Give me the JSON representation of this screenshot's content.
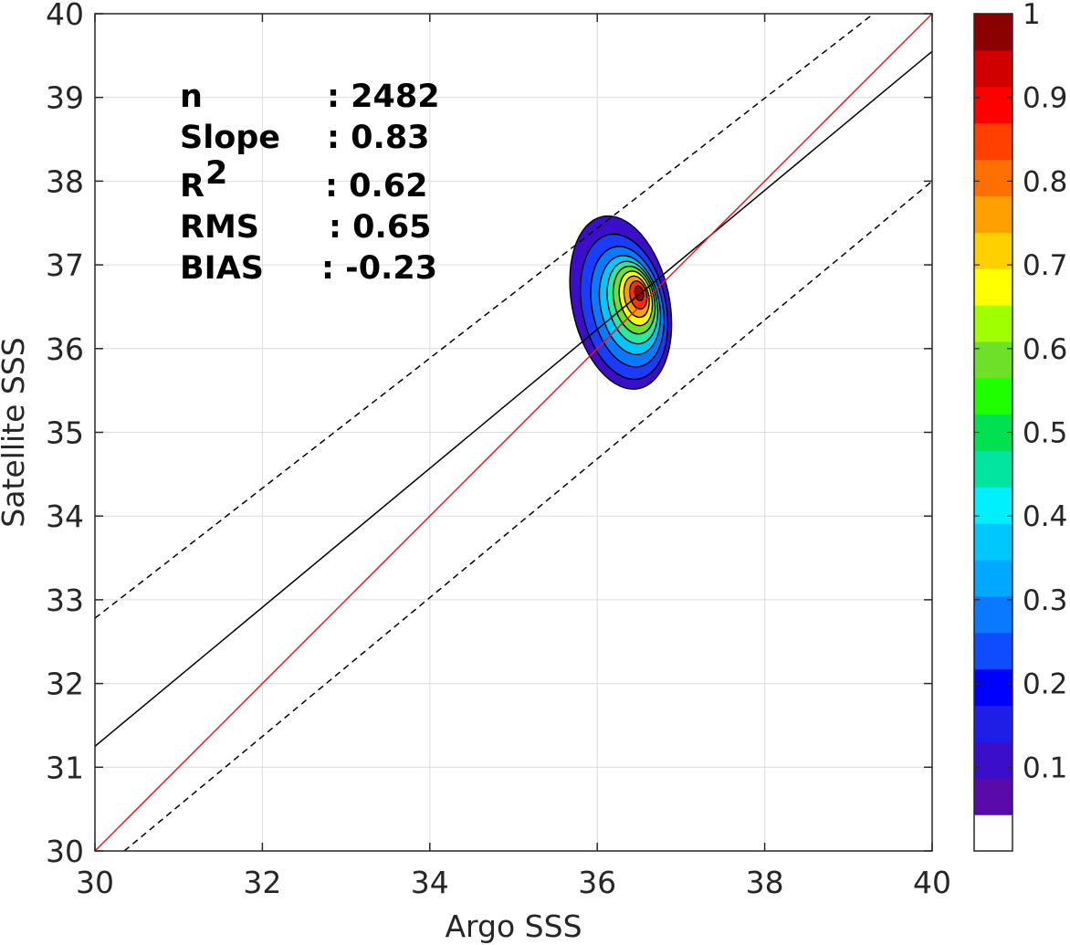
{
  "chart_data": {
    "type": "contour-density-scatter",
    "xlabel": "Argo SSS",
    "ylabel": "Satellite SSS",
    "xlim": [
      30,
      40
    ],
    "ylim": [
      30,
      40
    ],
    "x_ticks": [
      "30",
      "32",
      "34",
      "36",
      "38",
      "40"
    ],
    "y_ticks": [
      "30",
      "31",
      "32",
      "33",
      "34",
      "35",
      "36",
      "37",
      "38",
      "39",
      "40"
    ],
    "grid": true,
    "stats": [
      {
        "label": "n",
        "sep": ": 2482"
      },
      {
        "label": "Slope",
        "sep": ": 0.83"
      },
      {
        "label": "R",
        "sup": "2",
        "sep": ": 0.62"
      },
      {
        "label": "RMS",
        "sep": ": 0.65"
      },
      {
        "label": "BIAS",
        "sep": ": -0.23"
      }
    ],
    "lines": {
      "one_to_one": {
        "color": "#e41a1c",
        "x": [
          30,
          40
        ],
        "y": [
          30,
          40
        ]
      },
      "regression": {
        "color": "#000000",
        "x": [
          30,
          40
        ],
        "y": [
          31.25,
          39.55
        ]
      },
      "upper_bound": {
        "color": "#000000",
        "style": "dashed",
        "x": [
          30,
          39.3
        ],
        "y": [
          32.78,
          40
        ]
      },
      "lower_bound": {
        "color": "#000000",
        "style": "dashed",
        "x": [
          30.35,
          40
        ],
        "y": [
          30,
          38.0
        ]
      }
    },
    "density_peak": {
      "x": 36.5,
      "y": 36.65
    },
    "density_levels": [
      {
        "level": 0.05,
        "color": "#3b0fc9",
        "cx": 36.28,
        "cy": 36.55,
        "rx": 0.58,
        "ry": 1.05
      },
      {
        "level": 0.15,
        "color": "#1a3cff",
        "cx": 36.32,
        "cy": 36.5,
        "rx": 0.5,
        "ry": 0.88
      },
      {
        "level": 0.25,
        "color": "#0a78ff",
        "cx": 36.36,
        "cy": 36.5,
        "rx": 0.42,
        "ry": 0.73
      },
      {
        "level": 0.35,
        "color": "#00c8ff",
        "cx": 36.39,
        "cy": 36.52,
        "rx": 0.35,
        "ry": 0.6
      },
      {
        "level": 0.45,
        "color": "#2ee8a0",
        "cx": 36.42,
        "cy": 36.55,
        "rx": 0.29,
        "ry": 0.5
      },
      {
        "level": 0.55,
        "color": "#6ee02a",
        "cx": 36.44,
        "cy": 36.58,
        "rx": 0.24,
        "ry": 0.41
      },
      {
        "level": 0.65,
        "color": "#ffff00",
        "cx": 36.46,
        "cy": 36.6,
        "rx": 0.19,
        "ry": 0.33
      },
      {
        "level": 0.75,
        "color": "#ffa000",
        "cx": 36.47,
        "cy": 36.62,
        "rx": 0.145,
        "ry": 0.25
      },
      {
        "level": 0.85,
        "color": "#ff3000",
        "cx": 36.49,
        "cy": 36.64,
        "rx": 0.1,
        "ry": 0.17
      },
      {
        "level": 0.95,
        "color": "#a80000",
        "cx": 36.5,
        "cy": 36.66,
        "rx": 0.05,
        "ry": 0.09
      }
    ],
    "colorbar": {
      "range": [
        0,
        1
      ],
      "ticks": [
        "0.1",
        "0.2",
        "0.3",
        "0.4",
        "0.5",
        "0.6",
        "0.7",
        "0.8",
        "0.9",
        "1"
      ],
      "colors": [
        "#ffffff",
        "#5a0aa8",
        "#3b0fc9",
        "#1e1ee6",
        "#0000ff",
        "#0f4bff",
        "#0a78ff",
        "#00a8ff",
        "#00c8ff",
        "#00f0ff",
        "#00e6a0",
        "#00e050",
        "#20ff00",
        "#6ee02a",
        "#a0ff00",
        "#ffff00",
        "#ffd000",
        "#ffa000",
        "#ff7000",
        "#ff4000",
        "#ff0000",
        "#d00000",
        "#8b0000"
      ]
    }
  }
}
